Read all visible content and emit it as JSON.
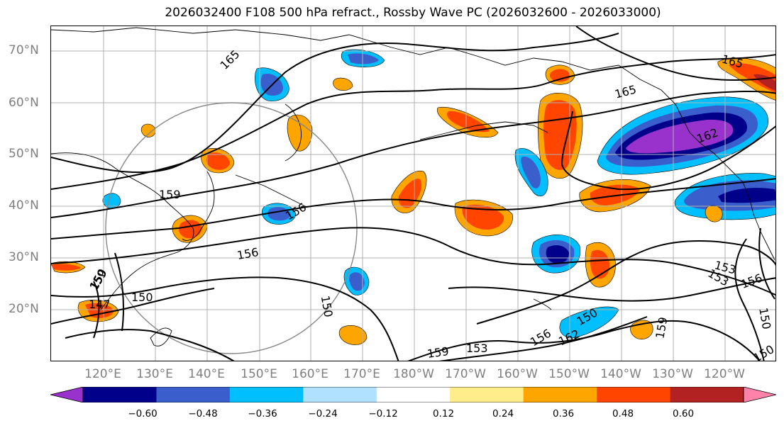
{
  "title": "2026032400 F108 500 hPa refract., Rossby Wave PC (2026032600 - 2026033000)",
  "lat_labels": [
    "70°N",
    "60°N",
    "50°N",
    "40°N",
    "30°N",
    "20°N"
  ],
  "lon_labels": [
    "120°E",
    "130°E",
    "140°E",
    "150°E",
    "160°E",
    "170°E",
    "180°W",
    "170°W",
    "160°W",
    "150°W",
    "140°W",
    "130°W",
    "120°W"
  ],
  "contour_labels": [
    "165",
    "165",
    "165",
    "162",
    "159",
    "156",
    "156",
    "150",
    "150",
    "147",
    "159",
    "150",
    "153",
    "159",
    "153",
    "150",
    "156",
    "162",
    "159",
    "153",
    "156",
    "150",
    "150"
  ],
  "colorbar": {
    "colors": [
      "#9932CC",
      "#00008B",
      "#3a5fcd",
      "#00BFFF",
      "#B0E2FF",
      "#FFFFFF",
      "#FFEC8B",
      "#FFA500",
      "#FF4500",
      "#B22222",
      "#FF82AB"
    ],
    "ticks": [
      "−0.60",
      "−0.48",
      "−0.36",
      "−0.24",
      "−0.12",
      "0.12",
      "0.24",
      "0.36",
      "0.48",
      "0.60"
    ]
  }
}
